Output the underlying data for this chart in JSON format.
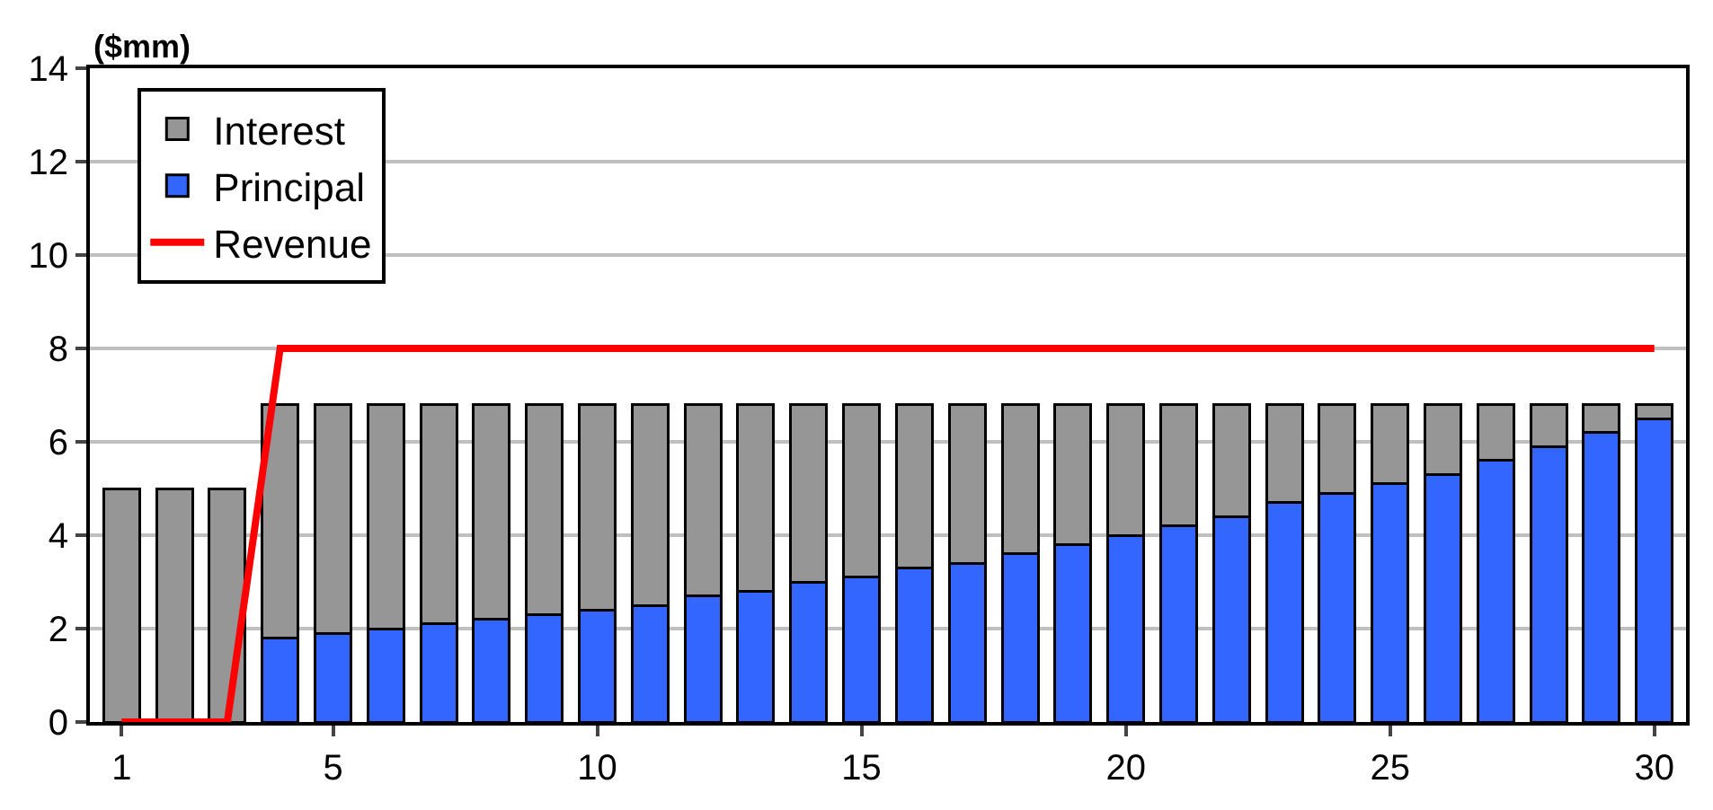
{
  "chart_data": {
    "type": "bar",
    "stacked": true,
    "ylabel": "($mm)",
    "x": [
      1,
      2,
      3,
      4,
      5,
      6,
      7,
      8,
      9,
      10,
      11,
      12,
      13,
      14,
      15,
      16,
      17,
      18,
      19,
      20,
      21,
      22,
      23,
      24,
      25,
      26,
      27,
      28,
      29,
      30
    ],
    "series": [
      {
        "name": "Principal",
        "color": "#3366ff",
        "values": [
          0,
          0,
          0,
          1.8,
          1.9,
          2.0,
          2.1,
          2.2,
          2.3,
          2.4,
          2.5,
          2.7,
          2.8,
          3.0,
          3.1,
          3.3,
          3.4,
          3.6,
          3.8,
          4.0,
          4.2,
          4.4,
          4.7,
          4.9,
          5.1,
          5.3,
          5.6,
          5.9,
          6.2,
          6.5
        ]
      },
      {
        "name": "Interest",
        "color": "#969696",
        "values": [
          5,
          5,
          5,
          5.0,
          4.9,
          4.8,
          4.7,
          4.6,
          4.5,
          4.4,
          4.3,
          4.1,
          4.0,
          3.8,
          3.7,
          3.5,
          3.4,
          3.2,
          3.0,
          2.8,
          2.6,
          2.4,
          2.1,
          1.9,
          1.7,
          1.5,
          1.2,
          0.9,
          0.6,
          0.3
        ]
      },
      {
        "name": "Revenue",
        "type": "line",
        "color": "#ff0000",
        "values": [
          0,
          0,
          0,
          8,
          8,
          8,
          8,
          8,
          8,
          8,
          8,
          8,
          8,
          8,
          8,
          8,
          8,
          8,
          8,
          8,
          8,
          8,
          8,
          8,
          8,
          8,
          8,
          8,
          8,
          8
        ]
      }
    ],
    "xlim": [
      0.4,
      30.6
    ],
    "xticks": [
      1,
      5,
      10,
      15,
      20,
      25,
      30
    ],
    "ylim": [
      0,
      14
    ],
    "yticks": [
      0,
      2,
      4,
      6,
      8,
      10,
      12,
      14
    ],
    "grid": "y",
    "legend": "top left",
    "marker": "none",
    "line_style": "solid"
  }
}
